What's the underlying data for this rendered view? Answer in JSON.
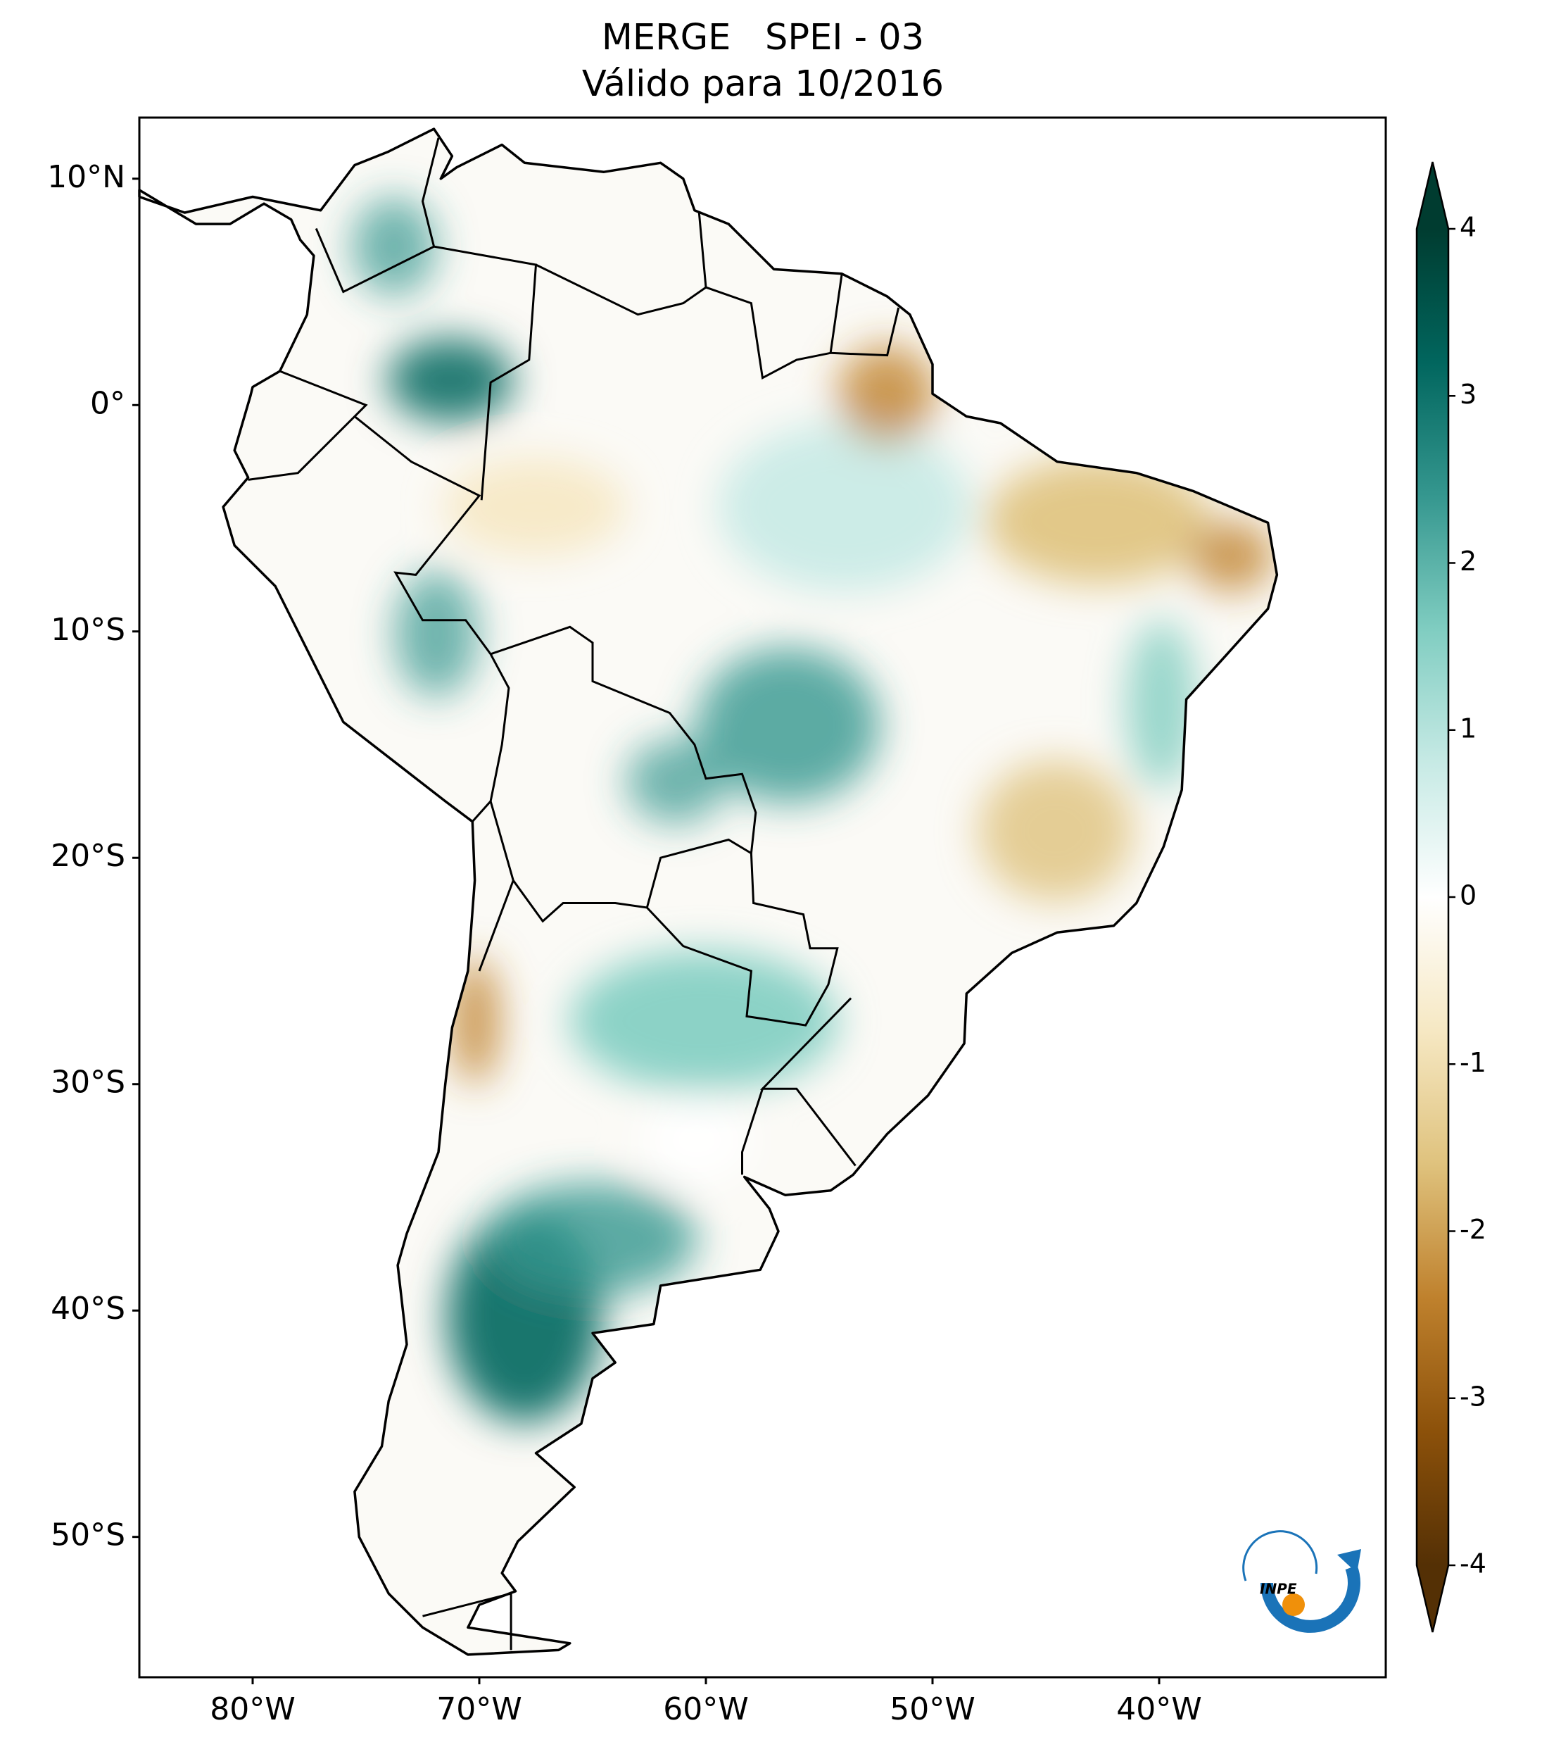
{
  "chart_data": {
    "type": "map",
    "title": "MERGE   SPEI - 03",
    "subtitle": "Válido para 10/2016",
    "xlim": [
      -85,
      -30
    ],
    "ylim": [
      -56.2,
      12.7
    ],
    "xticks": [
      {
        "value": -80,
        "label": "80°W"
      },
      {
        "value": -70,
        "label": "70°W"
      },
      {
        "value": -60,
        "label": "60°W"
      },
      {
        "value": -50,
        "label": "50°W"
      },
      {
        "value": -40,
        "label": "40°W"
      }
    ],
    "yticks": [
      {
        "value": 10,
        "label": "10°N"
      },
      {
        "value": 0,
        "label": "0°"
      },
      {
        "value": -10,
        "label": "10°S"
      },
      {
        "value": -20,
        "label": "20°S"
      },
      {
        "value": -30,
        "label": "30°S"
      },
      {
        "value": -40,
        "label": "40°S"
      },
      {
        "value": -50,
        "label": "50°S"
      }
    ],
    "colorbar": {
      "clim": [
        -4,
        4
      ],
      "ticks": [
        4,
        3,
        2,
        1,
        0,
        -1,
        -2,
        -3,
        -4
      ],
      "extend": "both",
      "colormap": [
        "#543005",
        "#8c510a",
        "#bf812d",
        "#dfc27d",
        "#f6e8c3",
        "#ffffff",
        "#c7eae5",
        "#80cdc1",
        "#35978f",
        "#01665e",
        "#003c30"
      ]
    }
  },
  "logo": "INPE"
}
